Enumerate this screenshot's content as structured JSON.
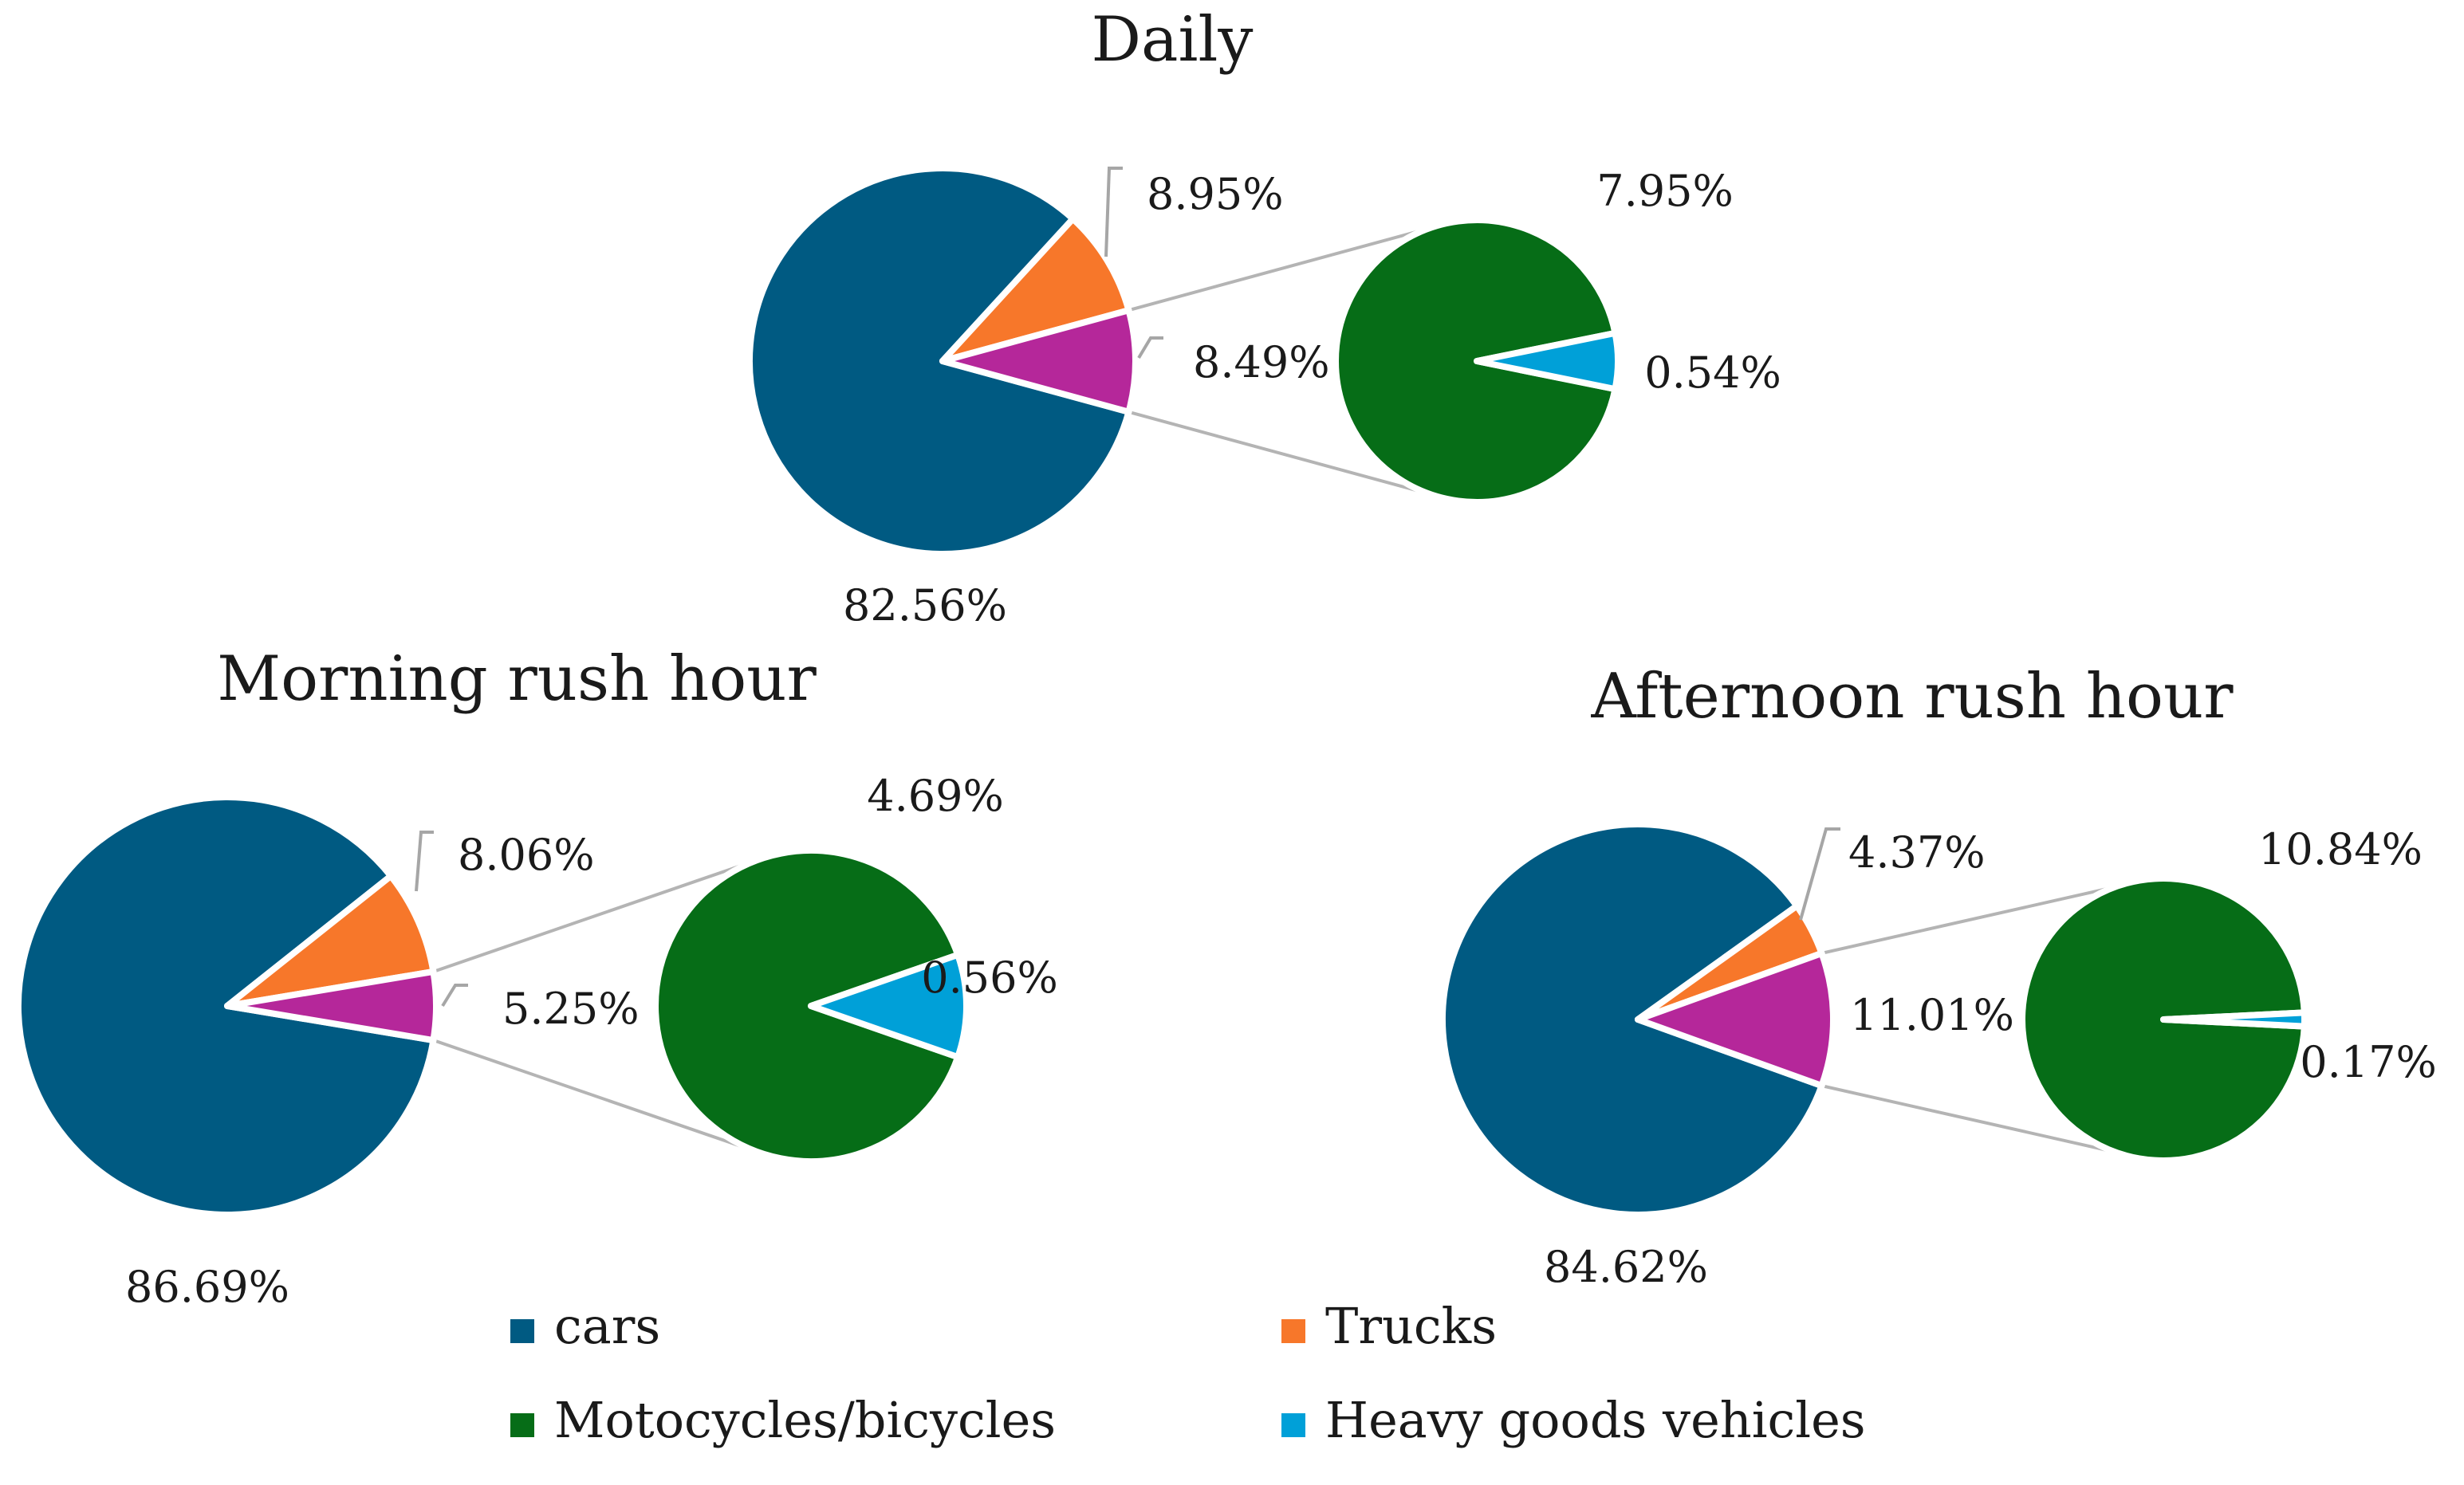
{
  "chart_data": [
    {
      "type": "pie",
      "subtype": "pie-of-pie",
      "title": "Daily",
      "categories": [
        "cars",
        "Trucks",
        "Motocycles/bicycles"
      ],
      "values": [
        82.56,
        8.95,
        8.49
      ],
      "value_labels": [
        "82.56%",
        "8.95%",
        "8.49%"
      ],
      "secondary": {
        "categories": [
          "Motocycles/bicycles",
          "Heavy goods vehicles"
        ],
        "values": [
          7.95,
          0.54
        ],
        "value_labels": [
          "7.95%",
          "0.54%"
        ]
      }
    },
    {
      "type": "pie",
      "subtype": "pie-of-pie",
      "title": "Morning rush hour",
      "categories": [
        "cars",
        "Trucks",
        "Motocycles/bicycles"
      ],
      "values": [
        86.69,
        8.06,
        5.25
      ],
      "value_labels": [
        "86.69%",
        "8.06%",
        "5.25%"
      ],
      "secondary": {
        "categories": [
          "Motocycles/bicycles",
          "Heavy goods vehicles"
        ],
        "values": [
          4.69,
          0.56
        ],
        "value_labels": [
          "4.69%",
          "0.56%"
        ]
      }
    },
    {
      "type": "pie",
      "subtype": "pie-of-pie",
      "title": "Afternoon rush hour",
      "categories": [
        "cars",
        "Trucks",
        "Motocycles/bicycles"
      ],
      "values": [
        84.62,
        4.37,
        11.01
      ],
      "value_labels": [
        "84.62%",
        "4.37%",
        "11.01%"
      ],
      "secondary": {
        "categories": [
          "Motocycles/bicycles",
          "Heavy goods vehicles"
        ],
        "values": [
          10.84,
          0.17
        ],
        "value_labels": [
          "10.84%",
          "0.17%"
        ]
      }
    }
  ],
  "legend": {
    "placement": "bottom",
    "items": [
      {
        "label": "cars",
        "color": "#005a82"
      },
      {
        "label": "Trucks",
        "color": "#f7772a"
      },
      {
        "label": "Motocycles/bicycles",
        "color": "#066d17"
      },
      {
        "label": "Heavy goods vehicles",
        "color": "#00a0d8"
      }
    ]
  },
  "colors": {
    "cars": "#005a82",
    "Trucks": "#f7772a",
    "Motocycles/bicycles": "#066d17",
    "other_group": "#b5279a",
    "Heavy goods vehicles": "#00a0d8"
  }
}
